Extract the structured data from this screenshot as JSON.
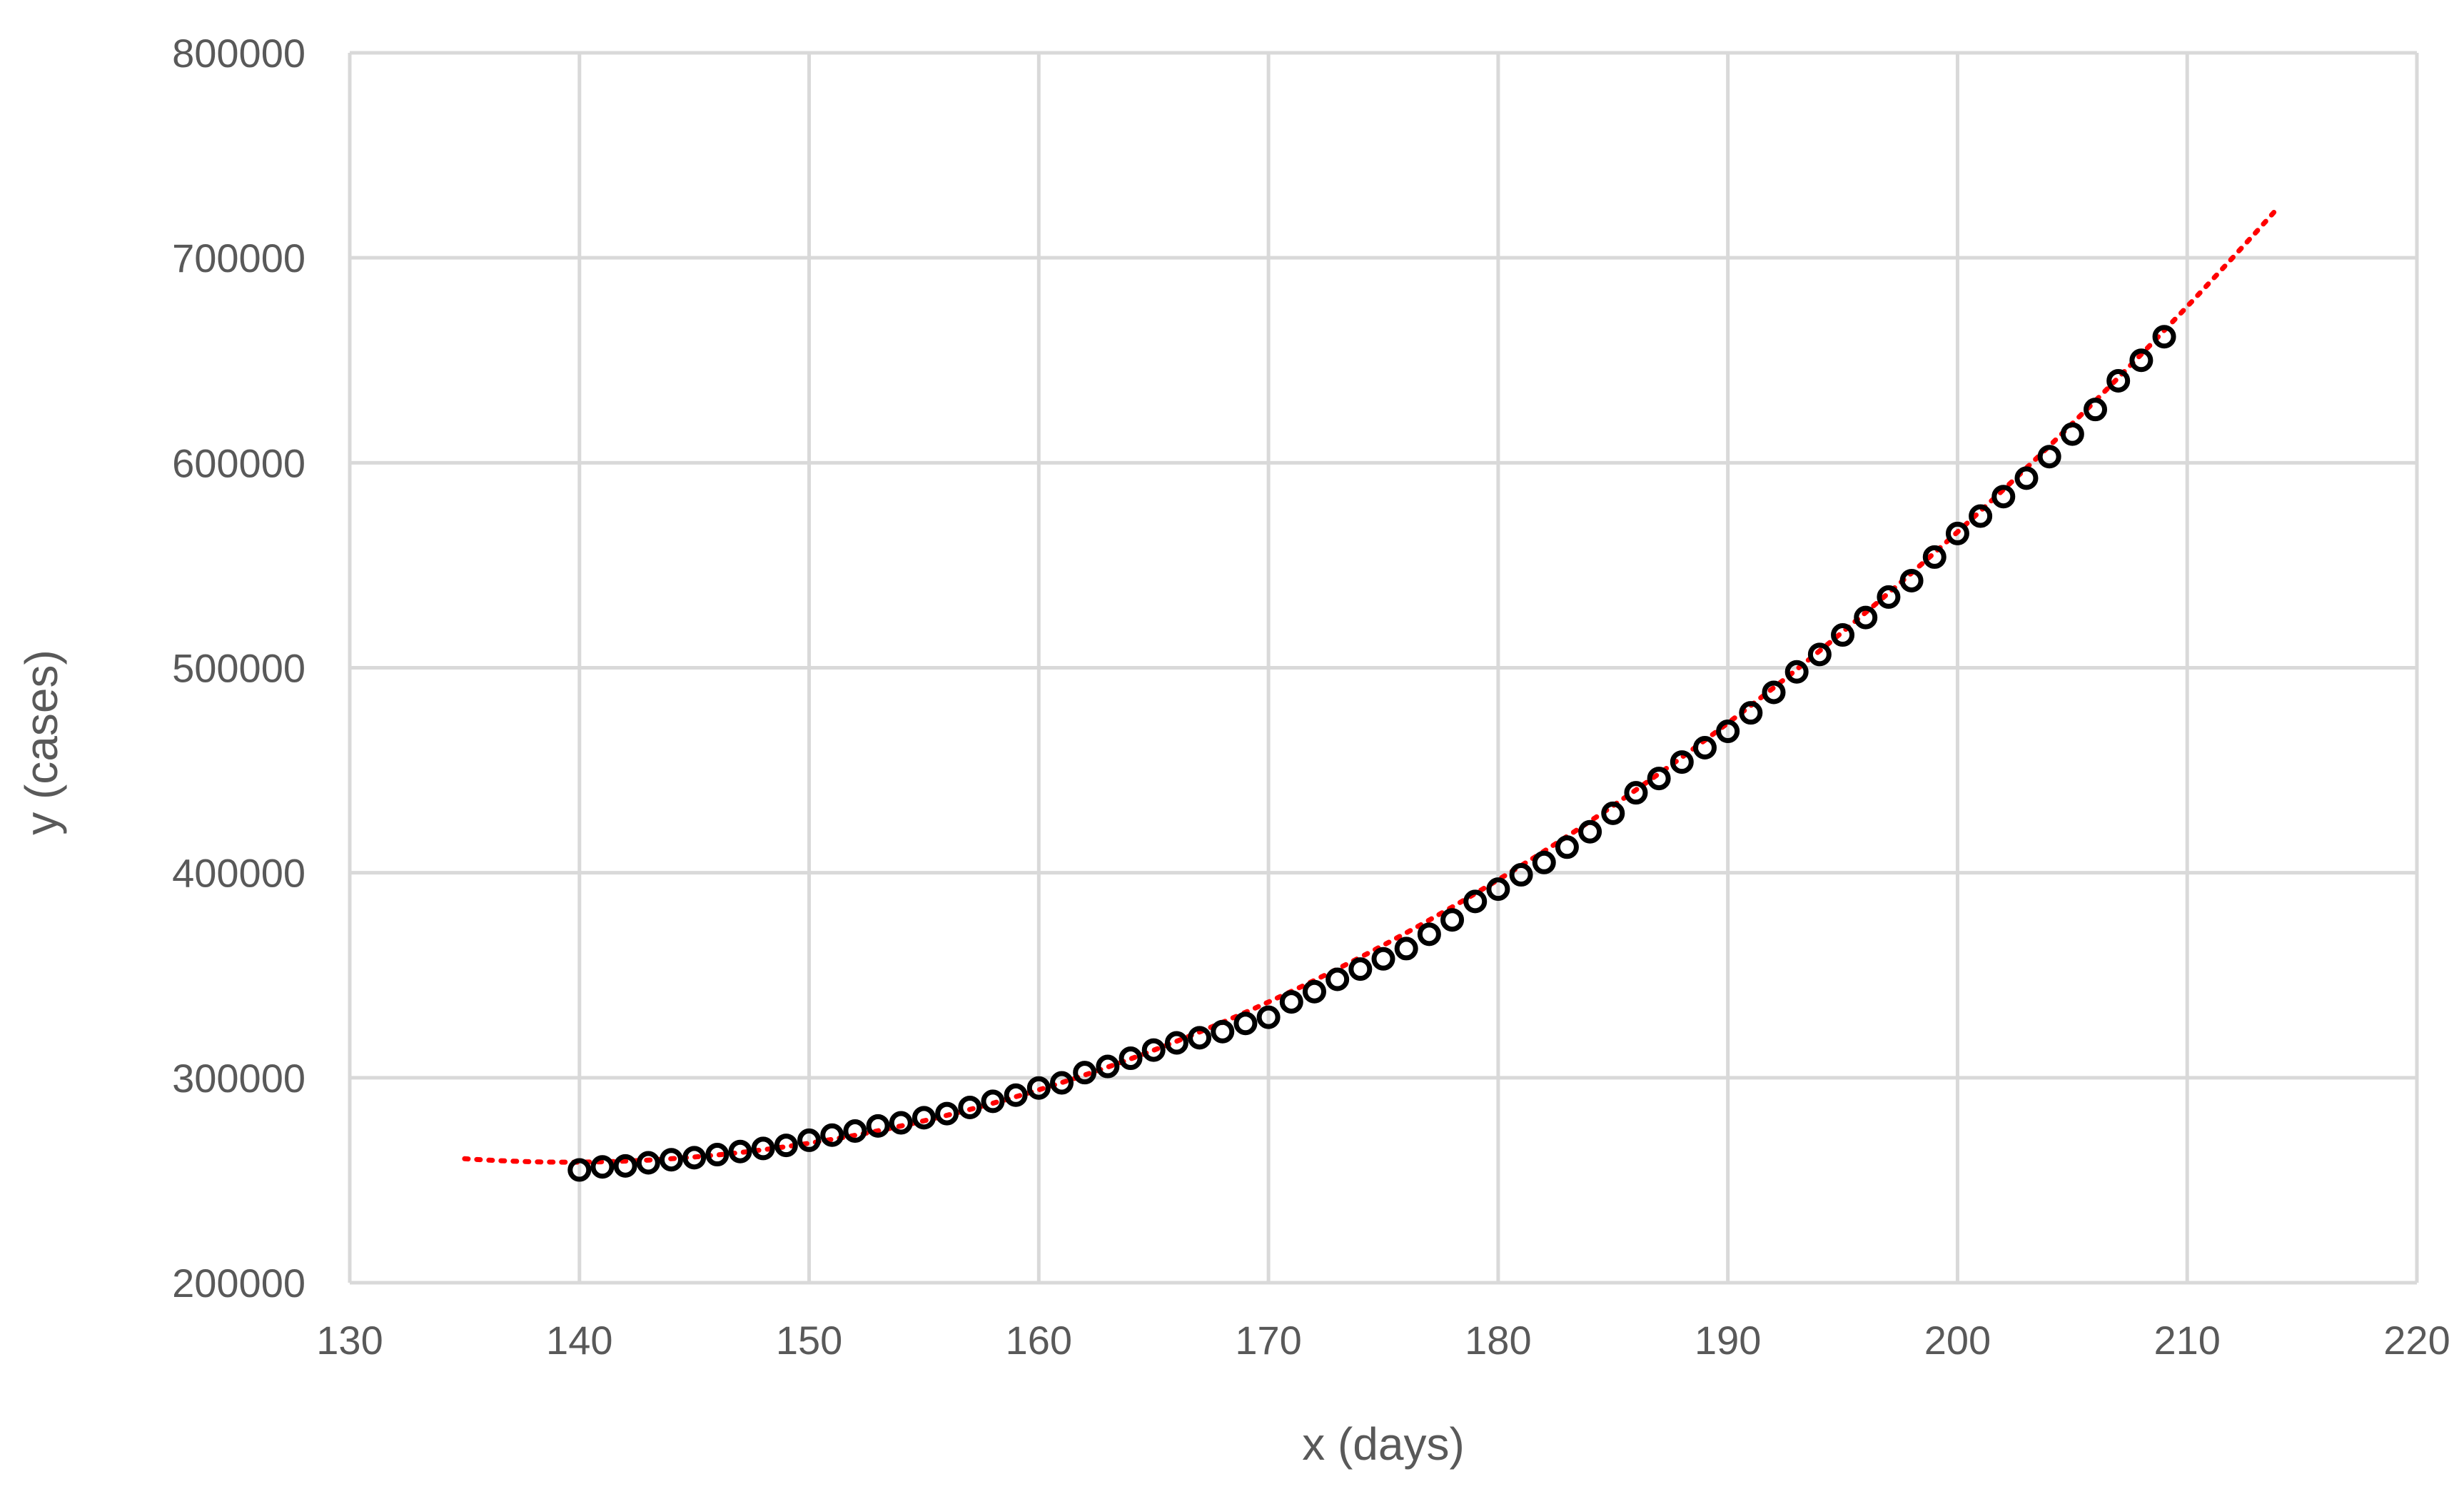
{
  "chart_data": {
    "type": "scatter",
    "title": "",
    "xlabel": "x (days)",
    "ylabel": "y (cases)",
    "xlim": [
      130,
      220
    ],
    "ylim": [
      200000,
      800000
    ],
    "x_ticks": [
      130,
      140,
      150,
      160,
      170,
      180,
      190,
      200,
      210,
      220
    ],
    "x_tick_labels": [
      "130",
      "140",
      "150",
      "160",
      "170",
      "180",
      "190",
      "200",
      "210",
      "220"
    ],
    "y_ticks": [
      200000,
      300000,
      400000,
      500000,
      600000,
      700000,
      800000
    ],
    "y_tick_labels": [
      "200000",
      "300000",
      "400000",
      "500000",
      "600000",
      "700000",
      "800000"
    ],
    "grid": true,
    "legend": "none",
    "series": [
      {
        "marker": "open-circle",
        "color": "#000000",
        "x": [
          140,
          141,
          142,
          143,
          144,
          145,
          146,
          147,
          148,
          149,
          150,
          151,
          152,
          153,
          154,
          155,
          156,
          157,
          158,
          159,
          160,
          161,
          162,
          163,
          164,
          165,
          166,
          167,
          168,
          169,
          170,
          171,
          172,
          173,
          174,
          175,
          176,
          177,
          178,
          179,
          180,
          181,
          182,
          183,
          184,
          185,
          186,
          187,
          188,
          189,
          190,
          191,
          192,
          193,
          194,
          195,
          196,
          197,
          198,
          199,
          200,
          201,
          202,
          203,
          204,
          205,
          206,
          207,
          208,
          209
        ],
        "y": [
          255000,
          256500,
          257000,
          258500,
          260000,
          261000,
          262500,
          264000,
          265500,
          267000,
          269500,
          272000,
          274000,
          276500,
          278000,
          280500,
          282500,
          285500,
          288500,
          291500,
          295000,
          297500,
          302500,
          305500,
          309500,
          313500,
          317000,
          319500,
          322500,
          326500,
          329500,
          337000,
          342000,
          348000,
          353000,
          358000,
          363000,
          370000,
          377000,
          386000,
          392000,
          399000,
          405000,
          412500,
          420000,
          429000,
          439000,
          446000,
          454000,
          461000,
          469000,
          478000,
          488000,
          498000,
          506500,
          516000,
          524500,
          534500,
          542500,
          554000,
          565500,
          574000,
          583500,
          592500,
          603000,
          614000,
          626000,
          640000,
          650000,
          661500
        ]
      },
      {
        "name": "",
        "line": "dotted",
        "color": "#ff0000",
        "trend": "polynomial",
        "x_range": [
          135,
          214
        ],
        "y_at_x_range": [
          260500,
          725000
        ]
      }
    ]
  }
}
